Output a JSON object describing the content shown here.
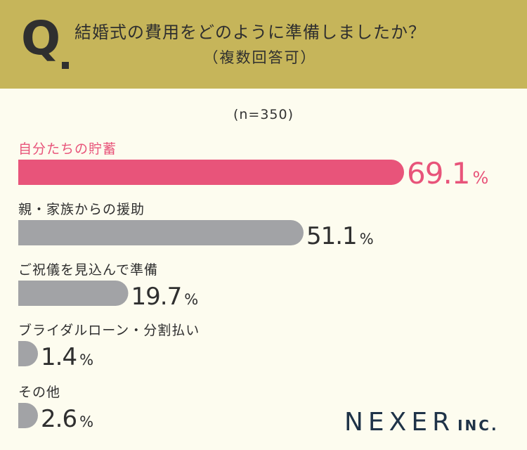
{
  "header": {
    "q_label": "Q",
    "title": "結婚式の費用をどのように準備しましたか？",
    "subtitle": "（複数回答可）"
  },
  "sample_label": "(n=350)",
  "logo": {
    "main": "NEXER",
    "suffix": "INC."
  },
  "colors": {
    "header_bg": "#c6b55a",
    "background": "#fdfcef",
    "highlight": "#e8547a",
    "bar_gray": "#a2a3a6",
    "text_dark": "#2f2f2f",
    "logo": "#1f3348"
  },
  "chart_data": {
    "type": "bar",
    "orientation": "horizontal",
    "title": "結婚式の費用をどのように準備しましたか？",
    "unit": "%",
    "categories": [
      "自分たちの貯蓄",
      "親・家族からの援助",
      "ご祝儀を見込んで準備",
      "ブライダルローン・分割払い",
      "その他"
    ],
    "values": [
      69.1,
      51.1,
      19.7,
      1.4,
      2.6
    ],
    "value_labels": [
      "69.1",
      "51.1",
      "19.7",
      "1.4",
      "2.6"
    ],
    "highlight_index": 0,
    "xlim": [
      0,
      100
    ]
  }
}
